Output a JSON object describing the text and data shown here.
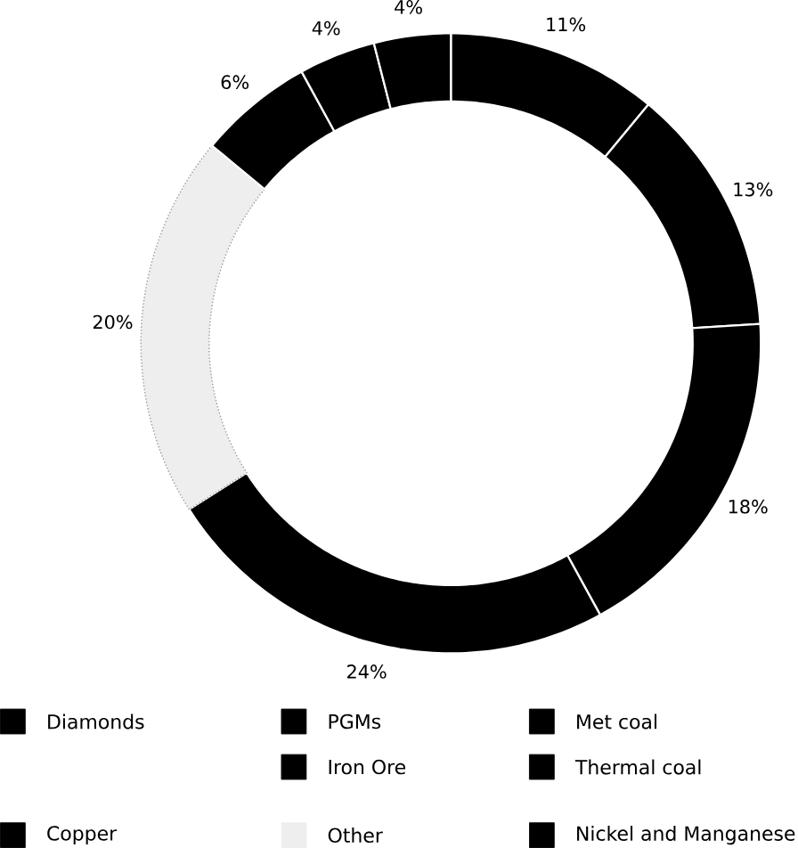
{
  "chart_data": {
    "type": "donut",
    "categories": [
      "Diamonds",
      "Copper",
      "PGMs",
      "Iron Ore",
      "Other",
      "Met coal",
      "Thermal coal",
      "Nickel and Manganese"
    ],
    "values": [
      11,
      13,
      18,
      24,
      20,
      6,
      4,
      4
    ],
    "value_labels": [
      "11%",
      "13%",
      "18%",
      "24%",
      "20%",
      "6%",
      "4%",
      "4%"
    ],
    "colors": [
      "#000000",
      "#000000",
      "#000000",
      "#000000",
      "#eeeeee",
      "#000000",
      "#000000",
      "#000000"
    ],
    "legend": "bottom"
  }
}
